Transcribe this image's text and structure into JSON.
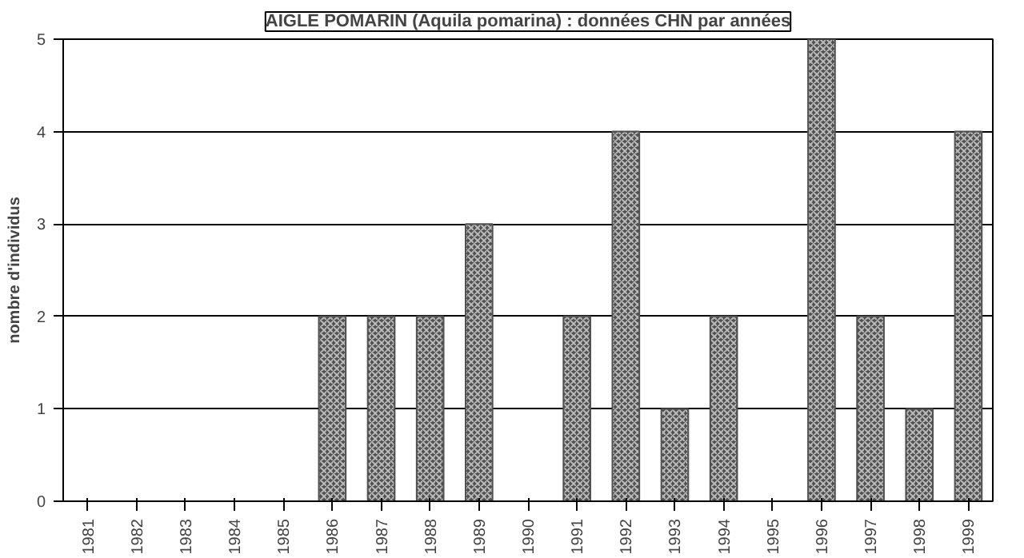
{
  "chart_data": {
    "type": "bar",
    "title": "AIGLE POMARIN (Aquila pomarina) : données CHN par années",
    "ylabel": "nombre d'individus",
    "categories": [
      "1981",
      "1982",
      "1983",
      "1984",
      "1985",
      "1986",
      "1987",
      "1988",
      "1989",
      "1990",
      "1991",
      "1992",
      "1993",
      "1994",
      "1995",
      "1996",
      "1997",
      "1998",
      "1999"
    ],
    "values": [
      0,
      0,
      0,
      0,
      0,
      2,
      2,
      2,
      3,
      0,
      2,
      4,
      1,
      2,
      0,
      5,
      2,
      1,
      4
    ],
    "color": "#505050",
    "ylim": [
      0,
      5
    ],
    "yticks": [
      0,
      1,
      2,
      3,
      4,
      5
    ],
    "grid": "y"
  }
}
